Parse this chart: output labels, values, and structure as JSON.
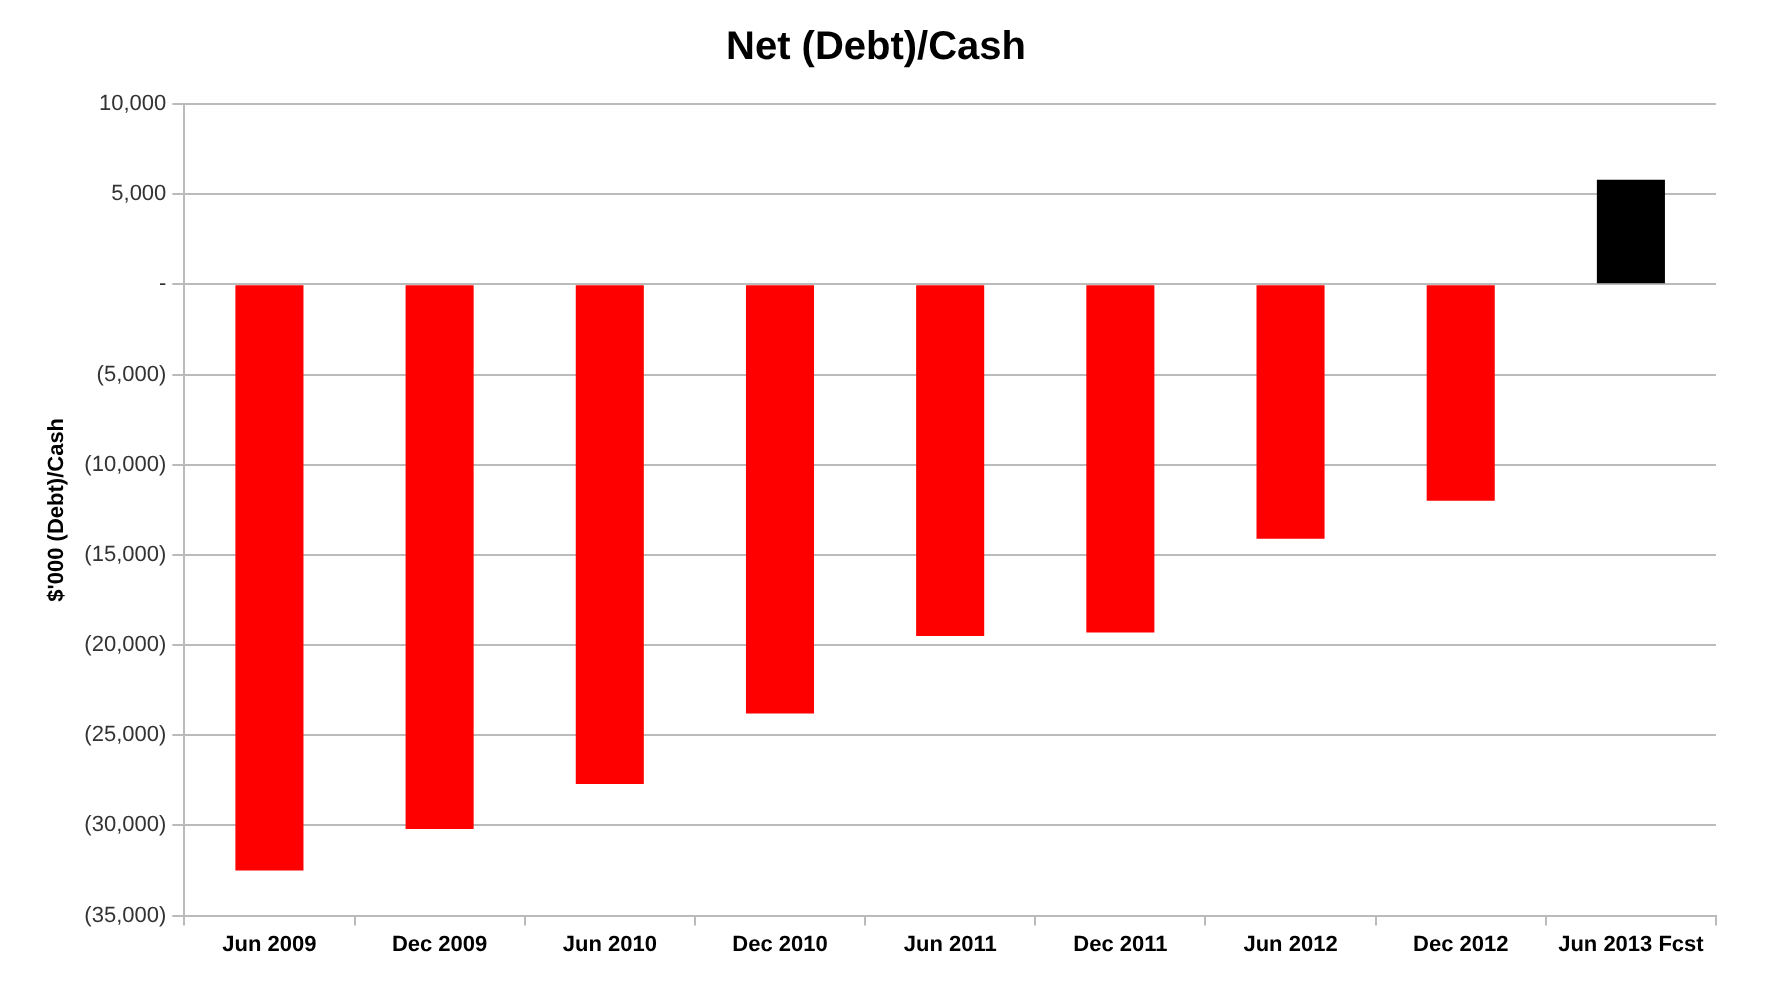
{
  "chart_data": {
    "type": "bar",
    "title": "Net (Debt)/Cash",
    "ylabel": "$'000 (Debt)/Cash",
    "categories": [
      "Jun 2009",
      "Dec 2009",
      "Jun 2010",
      "Dec 2010",
      "Jun 2011",
      "Dec 2011",
      "Jun 2012",
      "Dec 2012",
      "Jun 2013 Fcst"
    ],
    "values": [
      -32500,
      -30200,
      -27700,
      -23800,
      -19500,
      -19300,
      -14100,
      -12000,
      5800
    ],
    "colors": [
      "#ff0000",
      "#ff0000",
      "#ff0000",
      "#ff0000",
      "#ff0000",
      "#ff0000",
      "#ff0000",
      "#ff0000",
      "#000000"
    ],
    "ylim": [
      -35000,
      10000
    ],
    "yticks": [
      {
        "value": -35000,
        "label": "(35,000)"
      },
      {
        "value": -30000,
        "label": "(30,000)"
      },
      {
        "value": -25000,
        "label": "(25,000)"
      },
      {
        "value": -20000,
        "label": "(20,000)"
      },
      {
        "value": -15000,
        "label": "(15,000)"
      },
      {
        "value": -10000,
        "label": "(10,000)"
      },
      {
        "value": -5000,
        "label": "(5,000)"
      },
      {
        "value": 0,
        "label": "-"
      },
      {
        "value": 5000,
        "label": "5,000"
      },
      {
        "value": 10000,
        "label": "10,000"
      }
    ],
    "grid": "y",
    "legend": false
  }
}
